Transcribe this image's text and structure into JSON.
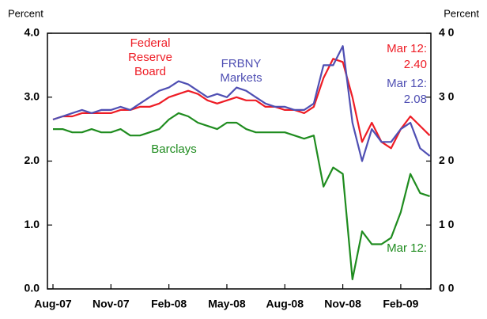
{
  "chart_data": {
    "type": "line",
    "ylabel": "Percent",
    "y2label": "Percent",
    "categories": [
      "Aug-07",
      null,
      null,
      null,
      null,
      null,
      "Nov-07",
      null,
      null,
      null,
      null,
      null,
      "Feb-08",
      null,
      null,
      null,
      null,
      null,
      "May-08",
      null,
      null,
      null,
      null,
      null,
      "Aug-08",
      null,
      null,
      null,
      null,
      null,
      "Nov-08",
      null,
      null,
      null,
      null,
      null,
      "Feb-09",
      null,
      null,
      null
    ],
    "series": [
      {
        "name": "Federal Reserve Board",
        "color": "#ee1c25",
        "annotation": "Mar 12:",
        "values": [
          2.65,
          2.7,
          2.7,
          2.75,
          2.75,
          2.75,
          2.75,
          2.8,
          2.8,
          2.85,
          2.85,
          2.9,
          3.0,
          3.05,
          3.1,
          3.05,
          2.95,
          2.9,
          2.95,
          3.0,
          2.95,
          2.95,
          2.85,
          2.85,
          2.8,
          2.8,
          2.75,
          2.85,
          3.3,
          3.6,
          3.55,
          3.0,
          2.3,
          2.6,
          2.3,
          2.2,
          2.5,
          2.7,
          2.55,
          2.4
        ],
        "value_labels": [
          null,
          null,
          null,
          null,
          null,
          null,
          null,
          null,
          null,
          null,
          null,
          null,
          null,
          null,
          null,
          null,
          null,
          null,
          null,
          null,
          null,
          null,
          null,
          null,
          null,
          null,
          null,
          null,
          null,
          null,
          null,
          null,
          null,
          null,
          null,
          null,
          null,
          null,
          null,
          "2.40"
        ]
      },
      {
        "name": "FRBNY Markets",
        "color": "#4f4fb3",
        "annotation": "Mar 12:",
        "values": [
          2.65,
          2.7,
          2.75,
          2.8,
          2.75,
          2.8,
          2.8,
          2.85,
          2.8,
          2.9,
          3.0,
          3.1,
          3.15,
          3.25,
          3.2,
          3.1,
          3.0,
          3.05,
          3.0,
          3.15,
          3.1,
          3.0,
          2.9,
          2.85,
          2.85,
          2.8,
          2.8,
          2.9,
          3.5,
          3.5,
          3.8,
          2.6,
          2.0,
          2.5,
          2.3,
          2.3,
          2.5,
          2.6,
          2.2,
          2.08
        ],
        "value_labels": [
          null,
          null,
          null,
          null,
          null,
          null,
          null,
          null,
          null,
          null,
          null,
          null,
          null,
          null,
          null,
          null,
          null,
          null,
          null,
          null,
          null,
          null,
          null,
          null,
          null,
          null,
          null,
          null,
          null,
          null,
          null,
          null,
          null,
          null,
          null,
          null,
          null,
          null,
          null,
          "2.08"
        ]
      },
      {
        "name": "Barclays",
        "color": "#1f8c1f",
        "annotation": "Mar 12:",
        "values": [
          2.5,
          2.5,
          2.45,
          2.45,
          2.5,
          2.45,
          2.45,
          2.5,
          2.4,
          2.4,
          2.45,
          2.5,
          2.65,
          2.75,
          2.7,
          2.6,
          2.55,
          2.5,
          2.6,
          2.6,
          2.5,
          2.45,
          2.45,
          2.45,
          2.45,
          2.4,
          2.35,
          2.4,
          1.6,
          1.9,
          1.8,
          0.15,
          0.9,
          0.7,
          0.7,
          0.8,
          1.2,
          1.8,
          1.5,
          1.45
        ]
      }
    ],
    "ylim": [
      0,
      4
    ],
    "yticks": [
      {
        "value": 0,
        "label": "0.0"
      },
      {
        "value": 1,
        "label": "1.0"
      },
      {
        "value": 2,
        "label": "2.0"
      },
      {
        "value": 3,
        "label": "3.0"
      },
      {
        "value": 4,
        "label": "4.0"
      }
    ],
    "y2lim": [
      0,
      4
    ],
    "y2ticks": [
      {
        "value": 0,
        "label": "0 0"
      },
      {
        "value": 1,
        "label": "1 0"
      },
      {
        "value": 2,
        "label": "2 0"
      },
      {
        "value": 3,
        "label": "3 0"
      },
      {
        "value": 4,
        "label": "4 0"
      }
    ],
    "grid": false
  }
}
